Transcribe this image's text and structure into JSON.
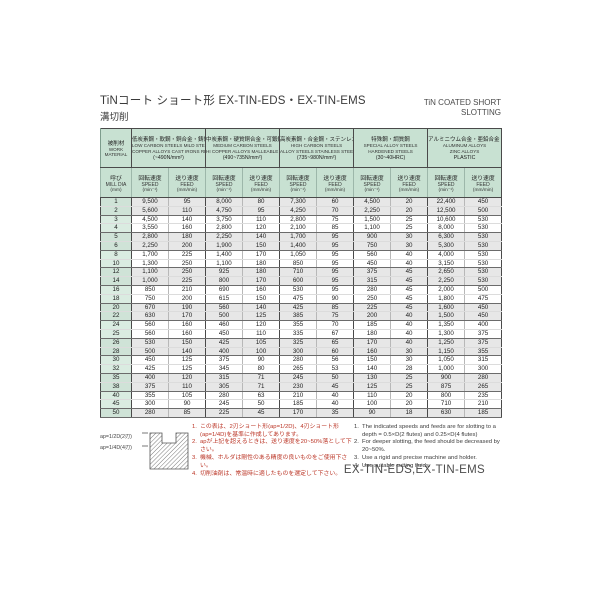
{
  "page": {
    "title_jp": "TiNコート ショート形 EX-TIN-EDS・EX-TIN-EMS",
    "subtitle_jp": "溝切削",
    "title_en_line1": "TiN COATED  SHORT",
    "title_en_line2": "SLOTTING",
    "footer_model": "EX-TIN-EDS,EX-TIN-EMS"
  },
  "table": {
    "corner": {
      "jp": "被削材",
      "en": "WORK",
      "en2": "MATERIAL"
    },
    "dia_header": {
      "jp": "呼び",
      "en": "MILL DIA",
      "unit": "(mm)"
    },
    "speed_label": {
      "jp": "回転速度",
      "en": "SPEED",
      "unit": "(min⁻¹)"
    },
    "feed_label": {
      "jp": "送り速度",
      "en": "FEED",
      "unit": "(mm/min)"
    },
    "groups": [
      {
        "jp": "低炭素鋼・軟鋼・銅合金・鋳鉄・樹脂",
        "lines": [
          "LOW CARBON STEELS MILD STEELS",
          "COPPER ALLOYS CAST IRONS RESINS",
          "(~490N/mm²)"
        ]
      },
      {
        "jp": "中炭素鋼・硬質銅合金・可鍛鋳鉄",
        "lines": [
          "MEDIUM CARBON STEELS",
          "HI COPPER ALLOYS MALLEABLE CAST IRONS",
          "(490~735N/mm²)"
        ]
      },
      {
        "jp": "高炭素鋼・合金鋼・ステンレス鋼",
        "lines": [
          "HIGH CARBON STEELS",
          "ALLOY STEELS STAINLESS STEELS",
          "(735~980N/mm²)"
        ]
      },
      {
        "jp": "特殊鋼・調質鋼",
        "lines": [
          "SPECIAL ALLOY STEELS",
          "HARDENED STEELS",
          "(30~40HRC)"
        ]
      },
      {
        "jp": "アルミニウム合金・亜鉛合金・プラスチック",
        "lines": [
          "ALUMINUM ALLOYS",
          "ZINC ALLOYS",
          "PLASTIC"
        ]
      }
    ],
    "rows": [
      [
        "1",
        "9,500",
        "95",
        "8,000",
        "80",
        "7,300",
        "60",
        "4,500",
        "20",
        "22,400",
        "450"
      ],
      [
        "2",
        "5,600",
        "110",
        "4,750",
        "95",
        "4,250",
        "70",
        "2,250",
        "20",
        "12,500",
        "500"
      ],
      [
        "3",
        "4,500",
        "140",
        "3,750",
        "110",
        "2,800",
        "75",
        "1,500",
        "25",
        "10,600",
        "530"
      ],
      [
        "4",
        "3,550",
        "160",
        "2,800",
        "120",
        "2,100",
        "85",
        "1,100",
        "25",
        "8,000",
        "530"
      ],
      [
        "5",
        "2,800",
        "180",
        "2,250",
        "140",
        "1,700",
        "95",
        "900",
        "30",
        "6,300",
        "530"
      ],
      [
        "6",
        "2,250",
        "200",
        "1,900",
        "150",
        "1,400",
        "95",
        "750",
        "30",
        "5,300",
        "530"
      ],
      [
        "8",
        "1,700",
        "225",
        "1,400",
        "170",
        "1,050",
        "95",
        "560",
        "40",
        "4,000",
        "530"
      ],
      [
        "10",
        "1,300",
        "250",
        "1,100",
        "180",
        "850",
        "95",
        "450",
        "40",
        "3,150",
        "530"
      ],
      [
        "12",
        "1,100",
        "250",
        "925",
        "180",
        "710",
        "95",
        "375",
        "45",
        "2,650",
        "530"
      ],
      [
        "14",
        "1,000",
        "225",
        "800",
        "170",
        "600",
        "95",
        "315",
        "45",
        "2,250",
        "530"
      ],
      [
        "16",
        "850",
        "210",
        "690",
        "160",
        "530",
        "95",
        "280",
        "45",
        "2,000",
        "500"
      ],
      [
        "18",
        "750",
        "200",
        "615",
        "150",
        "475",
        "90",
        "250",
        "45",
        "1,800",
        "475"
      ],
      [
        "20",
        "670",
        "190",
        "560",
        "140",
        "425",
        "85",
        "225",
        "45",
        "1,600",
        "450"
      ],
      [
        "22",
        "630",
        "170",
        "500",
        "125",
        "385",
        "75",
        "200",
        "40",
        "1,500",
        "450"
      ],
      [
        "24",
        "560",
        "160",
        "460",
        "120",
        "355",
        "70",
        "185",
        "40",
        "1,350",
        "400"
      ],
      [
        "25",
        "560",
        "160",
        "450",
        "110",
        "335",
        "67",
        "180",
        "40",
        "1,300",
        "375"
      ],
      [
        "26",
        "530",
        "150",
        "425",
        "105",
        "325",
        "65",
        "170",
        "40",
        "1,250",
        "375"
      ],
      [
        "28",
        "500",
        "140",
        "400",
        "100",
        "300",
        "60",
        "160",
        "30",
        "1,150",
        "355"
      ],
      [
        "30",
        "450",
        "125",
        "375",
        "90",
        "280",
        "56",
        "150",
        "30",
        "1,050",
        "315"
      ],
      [
        "32",
        "425",
        "125",
        "345",
        "80",
        "265",
        "53",
        "140",
        "28",
        "1,000",
        "300"
      ],
      [
        "35",
        "400",
        "120",
        "315",
        "71",
        "245",
        "50",
        "130",
        "25",
        "900",
        "280"
      ],
      [
        "38",
        "375",
        "110",
        "305",
        "71",
        "230",
        "45",
        "125",
        "25",
        "875",
        "265"
      ],
      [
        "40",
        "355",
        "105",
        "280",
        "63",
        "210",
        "40",
        "110",
        "20",
        "800",
        "235"
      ],
      [
        "45",
        "300",
        "90",
        "245",
        "50",
        "185",
        "40",
        "100",
        "20",
        "710",
        "210"
      ],
      [
        "50",
        "280",
        "85",
        "225",
        "45",
        "170",
        "35",
        "90",
        "18",
        "630",
        "185"
      ]
    ]
  },
  "diagram": {
    "label_top": "ap=1/2D(2刃)",
    "label_bottom": "ap=1/4D(4刃)"
  },
  "notes_jp": [
    "この表は、2刃ショート形(ap=1/2D)、4刃ショート形(ap=1/4D)を基準に作成してあります。",
    "apが上記を超えるときは、送り速度を20~50%落として下さい。",
    "機械、ホルダは剛性のある精度の良いものをご使用下さい。",
    "切削油剤は、常温時に適したものを選定して下さい。"
  ],
  "notes_en": [
    "The indicated speeds and feeds are for slotting to a depth = 0.5×D(2 flutes) and 0.25×D(4 flutes)",
    "For deeper slotting, the feed should be decreased by 20~50%.",
    "Use a rigid and precise machine and holder.",
    "Use suitable cutting fluids."
  ],
  "colors": {
    "header_green": "#c8e1d2",
    "dia_green": "#daece1",
    "band_gray": "#e7e7e7",
    "note_red": "#bb3526"
  }
}
